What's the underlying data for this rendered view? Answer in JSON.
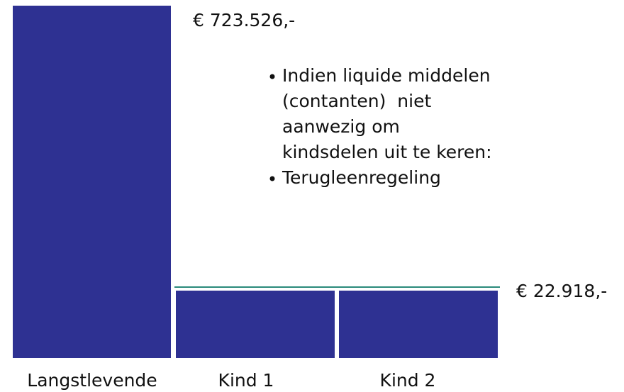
{
  "labels": {
    "total": "€ 723.526,-",
    "share": "€ 22.918,-"
  },
  "bullets": [
    {
      "lines": [
        "Indien liquide middelen",
        "(contanten)  niet",
        "aanwezig om",
        "kindsdelen uit te keren:"
      ]
    },
    {
      "lines": [
        "Terugleenregeling"
      ]
    }
  ],
  "categories": [
    "Langstlevende",
    "Kind 1",
    "Kind 2"
  ]
}
